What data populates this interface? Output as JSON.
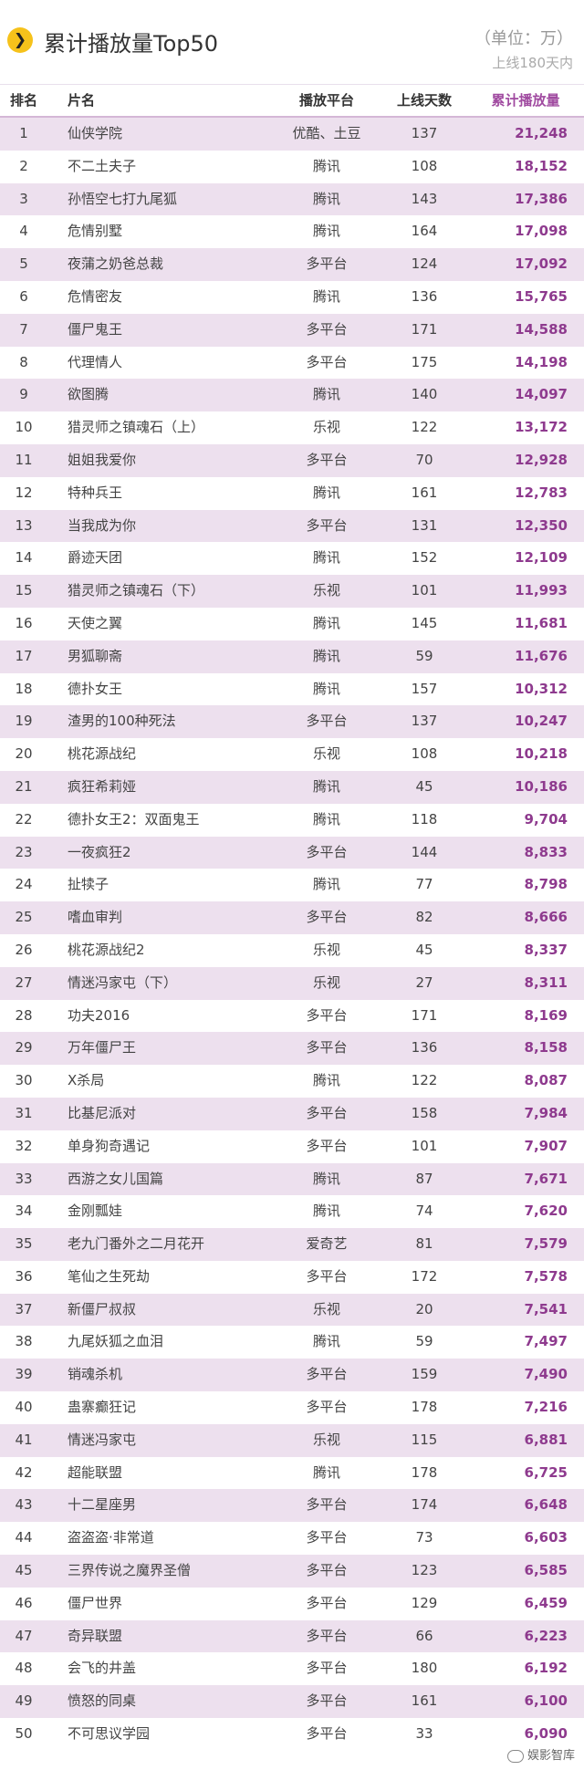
{
  "header": {
    "badge_icon": "chevron-right-icon",
    "badge_glyph": "❯",
    "title": "累计播放量Top50",
    "unit": "（单位：万）",
    "range": "上线180天内"
  },
  "watermark": "娱影智库",
  "chart_data": {
    "type": "table",
    "columns": [
      "排名",
      "片名",
      "播放平台",
      "上线天数",
      "累计播放量"
    ],
    "rows": [
      {
        "rank": "1",
        "name": "仙侠学院",
        "platform": "优酷、土豆",
        "days": "137",
        "views": "21,248"
      },
      {
        "rank": "2",
        "name": "不二土夫子",
        "platform": "腾讯",
        "days": "108",
        "views": "18,152"
      },
      {
        "rank": "3",
        "name": "孙悟空七打九尾狐",
        "platform": "腾讯",
        "days": "143",
        "views": "17,386"
      },
      {
        "rank": "4",
        "name": "危情别墅",
        "platform": "腾讯",
        "days": "164",
        "views": "17,098"
      },
      {
        "rank": "5",
        "name": "夜蒲之奶爸总裁",
        "platform": "多平台",
        "days": "124",
        "views": "17,092"
      },
      {
        "rank": "6",
        "name": "危情密友",
        "platform": "腾讯",
        "days": "136",
        "views": "15,765"
      },
      {
        "rank": "7",
        "name": "僵尸鬼王",
        "platform": "多平台",
        "days": "171",
        "views": "14,588"
      },
      {
        "rank": "8",
        "name": "代理情人",
        "platform": "多平台",
        "days": "175",
        "views": "14,198"
      },
      {
        "rank": "9",
        "name": "欲图腾",
        "platform": "腾讯",
        "days": "140",
        "views": "14,097"
      },
      {
        "rank": "10",
        "name": "猎灵师之镇魂石（上）",
        "platform": "乐视",
        "days": "122",
        "views": "13,172"
      },
      {
        "rank": "11",
        "name": "姐姐我爱你",
        "platform": "多平台",
        "days": "70",
        "views": "12,928"
      },
      {
        "rank": "12",
        "name": "特种兵王",
        "platform": "腾讯",
        "days": "161",
        "views": "12,783"
      },
      {
        "rank": "13",
        "name": "当我成为你",
        "platform": "多平台",
        "days": "131",
        "views": "12,350"
      },
      {
        "rank": "14",
        "name": "爵迹天团",
        "platform": "腾讯",
        "days": "152",
        "views": "12,109"
      },
      {
        "rank": "15",
        "name": "猎灵师之镇魂石（下）",
        "platform": "乐视",
        "days": "101",
        "views": "11,993"
      },
      {
        "rank": "16",
        "name": "天使之翼",
        "platform": "腾讯",
        "days": "145",
        "views": "11,681"
      },
      {
        "rank": "17",
        "name": "男狐聊斋",
        "platform": "腾讯",
        "days": "59",
        "views": "11,676"
      },
      {
        "rank": "18",
        "name": "德扑女王",
        "platform": "腾讯",
        "days": "157",
        "views": "10,312"
      },
      {
        "rank": "19",
        "name": "渣男的100种死法",
        "platform": "多平台",
        "days": "137",
        "views": "10,247"
      },
      {
        "rank": "20",
        "name": "桃花源战纪",
        "platform": "乐视",
        "days": "108",
        "views": "10,218"
      },
      {
        "rank": "21",
        "name": "疯狂希莉娅",
        "platform": "腾讯",
        "days": "45",
        "views": "10,186"
      },
      {
        "rank": "22",
        "name": "德扑女王2：双面鬼王",
        "platform": "腾讯",
        "days": "118",
        "views": "9,704"
      },
      {
        "rank": "23",
        "name": "一夜疯狂2",
        "platform": "多平台",
        "days": "144",
        "views": "8,833"
      },
      {
        "rank": "24",
        "name": "扯犊子",
        "platform": "腾讯",
        "days": "77",
        "views": "8,798"
      },
      {
        "rank": "25",
        "name": "嗜血审判",
        "platform": "多平台",
        "days": "82",
        "views": "8,666"
      },
      {
        "rank": "26",
        "name": "桃花源战纪2",
        "platform": "乐视",
        "days": "45",
        "views": "8,337"
      },
      {
        "rank": "27",
        "name": "情迷冯家屯（下）",
        "platform": "乐视",
        "days": "27",
        "views": "8,311"
      },
      {
        "rank": "28",
        "name": "功夫2016",
        "platform": "多平台",
        "days": "171",
        "views": "8,169"
      },
      {
        "rank": "29",
        "name": "万年僵尸王",
        "platform": "多平台",
        "days": "136",
        "views": "8,158"
      },
      {
        "rank": "30",
        "name": "X杀局",
        "platform": "腾讯",
        "days": "122",
        "views": "8,087"
      },
      {
        "rank": "31",
        "name": "比基尼派对",
        "platform": "多平台",
        "days": "158",
        "views": "7,984"
      },
      {
        "rank": "32",
        "name": "单身狗奇遇记",
        "platform": "多平台",
        "days": "101",
        "views": "7,907"
      },
      {
        "rank": "33",
        "name": "西游之女儿国篇",
        "platform": "腾讯",
        "days": "87",
        "views": "7,671"
      },
      {
        "rank": "34",
        "name": "金刚瓢娃",
        "platform": "腾讯",
        "days": "74",
        "views": "7,620"
      },
      {
        "rank": "35",
        "name": "老九门番外之二月花开",
        "platform": "爱奇艺",
        "days": "81",
        "views": "7,579"
      },
      {
        "rank": "36",
        "name": "笔仙之生死劫",
        "platform": "多平台",
        "days": "172",
        "views": "7,578"
      },
      {
        "rank": "37",
        "name": "新僵尸叔叔",
        "platform": "乐视",
        "days": "20",
        "views": "7,541"
      },
      {
        "rank": "38",
        "name": "九尾妖狐之血泪",
        "platform": "腾讯",
        "days": "59",
        "views": "7,497"
      },
      {
        "rank": "39",
        "name": "销魂杀机",
        "platform": "多平台",
        "days": "159",
        "views": "7,490"
      },
      {
        "rank": "40",
        "name": "蛊寨癫狂记",
        "platform": "多平台",
        "days": "178",
        "views": "7,216"
      },
      {
        "rank": "41",
        "name": "情迷冯家屯",
        "platform": "乐视",
        "days": "115",
        "views": "6,881"
      },
      {
        "rank": "42",
        "name": "超能联盟",
        "platform": "腾讯",
        "days": "178",
        "views": "6,725"
      },
      {
        "rank": "43",
        "name": "十二星座男",
        "platform": "多平台",
        "days": "174",
        "views": "6,648"
      },
      {
        "rank": "44",
        "name": "盗盗盗·非常道",
        "platform": "多平台",
        "days": "73",
        "views": "6,603"
      },
      {
        "rank": "45",
        "name": "三界传说之魔界圣僧",
        "platform": "多平台",
        "days": "123",
        "views": "6,585"
      },
      {
        "rank": "46",
        "name": "僵尸世界",
        "platform": "多平台",
        "days": "129",
        "views": "6,459"
      },
      {
        "rank": "47",
        "name": "奇异联盟",
        "platform": "多平台",
        "days": "66",
        "views": "6,223"
      },
      {
        "rank": "48",
        "name": "会飞的井盖",
        "platform": "多平台",
        "days": "180",
        "views": "6,192"
      },
      {
        "rank": "49",
        "name": "愤怒的同桌",
        "platform": "多平台",
        "days": "161",
        "views": "6,100"
      },
      {
        "rank": "50",
        "name": "不可思议学园",
        "platform": "多平台",
        "days": "33",
        "views": "6,090"
      }
    ]
  },
  "colors": {
    "stripe": "#ede0ee",
    "value": "#8e3a8e",
    "badge": "#f6c21b"
  }
}
